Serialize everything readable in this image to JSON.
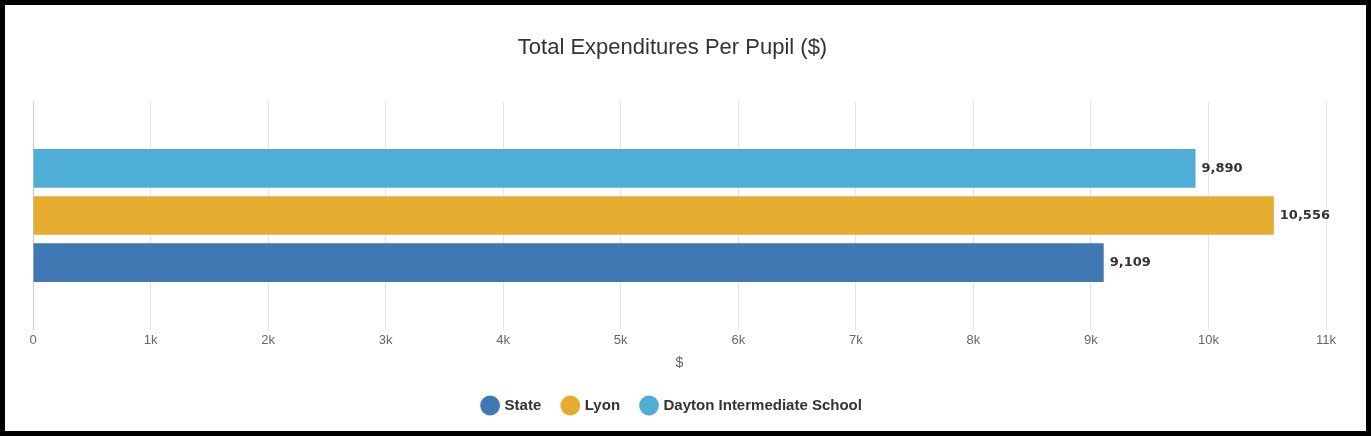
{
  "chart_data": {
    "type": "bar",
    "orientation": "horizontal",
    "title": "Total Expenditures Per Pupil ($)",
    "xlabel": "$",
    "categories": [
      null
    ],
    "series": [
      {
        "name": "State",
        "color": "#3f78b3",
        "values": [
          9109
        ],
        "value_labels": [
          "9,109"
        ]
      },
      {
        "name": "Lyon",
        "color": "#e6ac2f",
        "values": [
          10556
        ],
        "value_labels": [
          "10,556"
        ]
      },
      {
        "name": "Dayton Intermediate School",
        "color": "#4eaed6",
        "values": [
          9890
        ],
        "value_labels": [
          "9,890"
        ]
      }
    ],
    "xlim": [
      0,
      11000
    ],
    "xticks": [
      0,
      {
        "value": 1000,
        "label": "1k"
      },
      {
        "value": 2000,
        "label": "2k"
      },
      {
        "value": 3000,
        "label": "3k"
      },
      {
        "value": 4000,
        "label": "4k"
      },
      {
        "value": 5000,
        "label": "5k"
      },
      {
        "value": 6000,
        "label": "6k"
      },
      {
        "value": 7000,
        "label": "7k"
      },
      {
        "value": 8000,
        "label": "8k"
      },
      {
        "value": 9000,
        "label": "9k"
      },
      {
        "value": 10000,
        "label": "10k"
      },
      {
        "value": 11000,
        "label": "11k"
      }
    ],
    "grid": "x",
    "legend": "bottom"
  }
}
